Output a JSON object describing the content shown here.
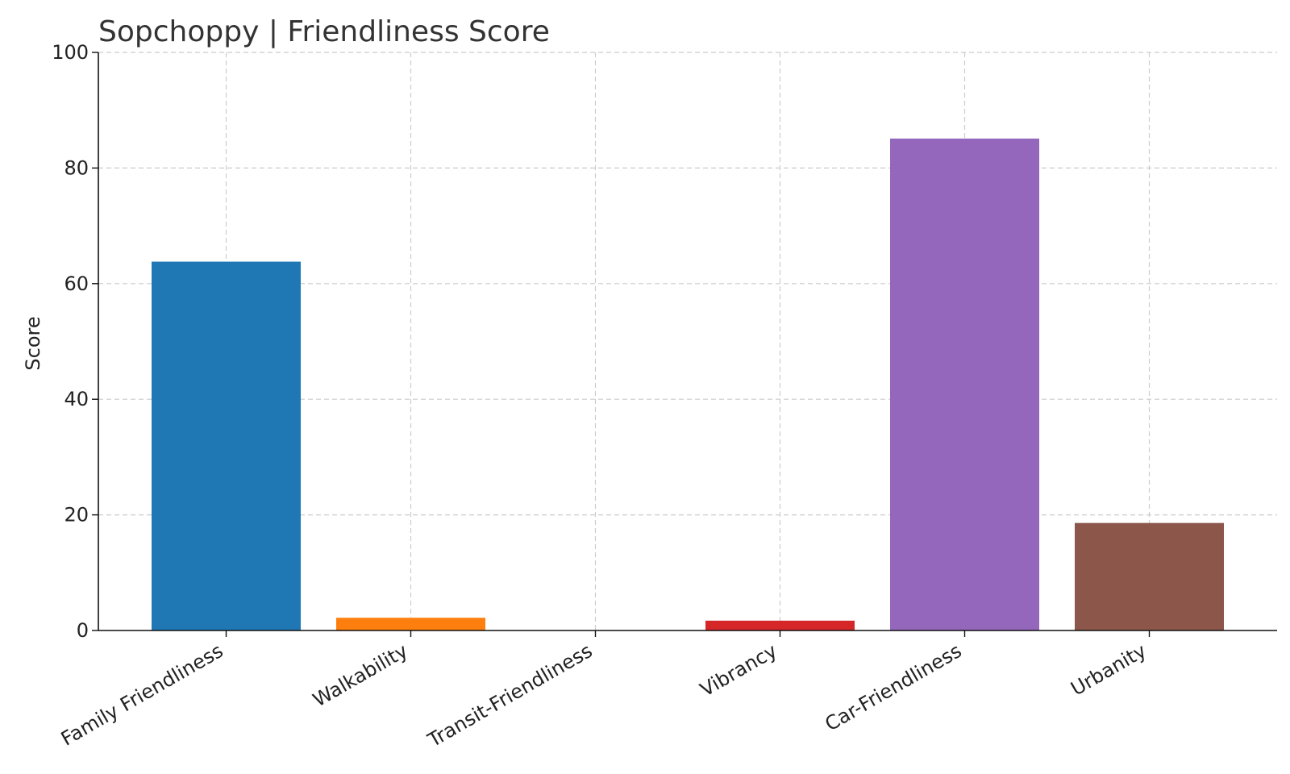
{
  "chart_data": {
    "type": "bar",
    "title": "Sopchoppy |  Friendliness Score",
    "xlabel": "",
    "ylabel": "Score",
    "categories": [
      "Family Friendliness",
      "Walkability",
      "Transit-Friendliness",
      "Vibrancy",
      "Car-Friendliness",
      "Urbanity"
    ],
    "values": [
      63.8,
      2.2,
      0,
      1.7,
      85.1,
      18.6
    ],
    "colors": [
      "#1f77b4",
      "#ff7f0e",
      "#2ca02c",
      "#d62728",
      "#9467bd",
      "#8c564b"
    ],
    "ylim": [
      0,
      100
    ],
    "yticks": [
      0,
      20,
      40,
      60,
      80,
      100
    ],
    "grid": true,
    "legend": "none"
  }
}
